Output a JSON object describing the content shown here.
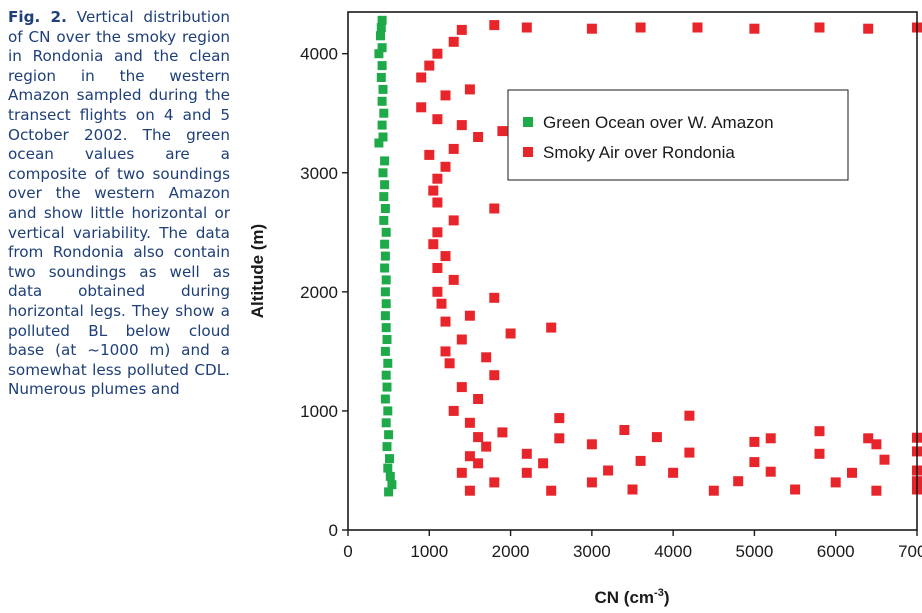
{
  "caption": {
    "label": "Fig. 2.",
    "text": "Vertical distribution of CN over the smoky region in Rondonia and the clean region in the western Amazon sampled during the transect flights on 4 and 5 October 2002. The green ocean values are a composite of two soundings over the western Amazon and show little horizontal or vertical variability. The data from Rondonia also contain two soundings as well as data obtained during horizontal legs. They show a polluted BL below cloud base (at ~1000 m) and a somewhat less polluted CDL. Numerous plumes and"
  },
  "chart_data": {
    "type": "scatter",
    "xlabel": "CN (cm",
    "xlabel_sup": "-3",
    "xlabel_close": ")",
    "ylabel": "Altitude (m)",
    "xlim": [
      0,
      7000
    ],
    "ylim": [
      0,
      4350
    ],
    "x_ticks": [
      "0",
      "1000",
      "2000",
      "3000",
      "4000",
      "5000",
      "6000",
      "7000"
    ],
    "y_ticks": [
      "0",
      "1000",
      "2000",
      "3000",
      "4000"
    ],
    "legend_position": "top-right",
    "series": [
      {
        "name": "Green Ocean over W. Amazon",
        "color": "#1faa4a",
        "points": [
          [
            500,
            320
          ],
          [
            540,
            380
          ],
          [
            520,
            450
          ],
          [
            490,
            520
          ],
          [
            510,
            600
          ],
          [
            480,
            700
          ],
          [
            500,
            800
          ],
          [
            470,
            900
          ],
          [
            490,
            1000
          ],
          [
            460,
            1100
          ],
          [
            480,
            1200
          ],
          [
            470,
            1300
          ],
          [
            490,
            1400
          ],
          [
            460,
            1500
          ],
          [
            480,
            1600
          ],
          [
            470,
            1700
          ],
          [
            460,
            1800
          ],
          [
            470,
            1900
          ],
          [
            460,
            2000
          ],
          [
            470,
            2100
          ],
          [
            450,
            2200
          ],
          [
            460,
            2300
          ],
          [
            450,
            2400
          ],
          [
            470,
            2500
          ],
          [
            440,
            2600
          ],
          [
            460,
            2700
          ],
          [
            440,
            2800
          ],
          [
            450,
            2900
          ],
          [
            430,
            3000
          ],
          [
            450,
            3100
          ],
          [
            380,
            3250
          ],
          [
            430,
            3300
          ],
          [
            420,
            3400
          ],
          [
            440,
            3500
          ],
          [
            420,
            3600
          ],
          [
            430,
            3700
          ],
          [
            410,
            3800
          ],
          [
            420,
            3900
          ],
          [
            380,
            4000
          ],
          [
            420,
            4050
          ],
          [
            400,
            4150
          ],
          [
            410,
            4220
          ],
          [
            420,
            4280
          ]
        ]
      },
      {
        "name": "Smoky Air over Rondonia",
        "color": "#e8252a",
        "points": [
          [
            1500,
            330
          ],
          [
            2500,
            330
          ],
          [
            3500,
            340
          ],
          [
            4500,
            330
          ],
          [
            5500,
            340
          ],
          [
            6500,
            330
          ],
          [
            7000,
            340
          ],
          [
            1800,
            400
          ],
          [
            3000,
            400
          ],
          [
            4800,
            410
          ],
          [
            6000,
            400
          ],
          [
            7000,
            410
          ],
          [
            1400,
            480
          ],
          [
            2200,
            480
          ],
          [
            3200,
            500
          ],
          [
            4000,
            480
          ],
          [
            5200,
            490
          ],
          [
            6200,
            480
          ],
          [
            7000,
            500
          ],
          [
            1600,
            560
          ],
          [
            2400,
            560
          ],
          [
            3600,
            580
          ],
          [
            5000,
            570
          ],
          [
            6600,
            590
          ],
          [
            1500,
            620
          ],
          [
            2200,
            640
          ],
          [
            4200,
            650
          ],
          [
            5800,
            640
          ],
          [
            7000,
            660
          ],
          [
            1700,
            700
          ],
          [
            3000,
            720
          ],
          [
            5000,
            740
          ],
          [
            6500,
            720
          ],
          [
            1600,
            780
          ],
          [
            2600,
            770
          ],
          [
            3800,
            780
          ],
          [
            5200,
            770
          ],
          [
            6400,
            770
          ],
          [
            7000,
            775
          ],
          [
            1900,
            820
          ],
          [
            3400,
            840
          ],
          [
            5800,
            830
          ],
          [
            1500,
            900
          ],
          [
            2600,
            940
          ],
          [
            4200,
            960
          ],
          [
            1300,
            1000
          ],
          [
            1600,
            1100
          ],
          [
            1400,
            1200
          ],
          [
            1800,
            1300
          ],
          [
            1250,
            1400
          ],
          [
            1700,
            1450
          ],
          [
            1200,
            1500
          ],
          [
            1400,
            1600
          ],
          [
            2000,
            1650
          ],
          [
            2500,
            1700
          ],
          [
            1200,
            1750
          ],
          [
            1500,
            1800
          ],
          [
            1150,
            1900
          ],
          [
            1800,
            1950
          ],
          [
            1100,
            2000
          ],
          [
            1300,
            2100
          ],
          [
            1100,
            2200
          ],
          [
            1200,
            2300
          ],
          [
            1050,
            2400
          ],
          [
            1100,
            2500
          ],
          [
            1300,
            2600
          ],
          [
            1800,
            2700
          ],
          [
            1100,
            2750
          ],
          [
            1050,
            2850
          ],
          [
            1100,
            2950
          ],
          [
            1200,
            3050
          ],
          [
            1000,
            3150
          ],
          [
            1300,
            3200
          ],
          [
            1600,
            3300
          ],
          [
            1900,
            3350
          ],
          [
            1400,
            3400
          ],
          [
            1100,
            3450
          ],
          [
            900,
            3550
          ],
          [
            1200,
            3650
          ],
          [
            1500,
            3700
          ],
          [
            900,
            3800
          ],
          [
            1000,
            3900
          ],
          [
            1100,
            4000
          ],
          [
            1300,
            4100
          ],
          [
            1400,
            4200
          ],
          [
            1800,
            4240
          ],
          [
            2200,
            4220
          ],
          [
            3000,
            4210
          ],
          [
            3600,
            4220
          ],
          [
            4300,
            4220
          ],
          [
            5000,
            4210
          ],
          [
            5800,
            4220
          ],
          [
            6400,
            4210
          ],
          [
            7000,
            4220
          ]
        ]
      }
    ]
  }
}
